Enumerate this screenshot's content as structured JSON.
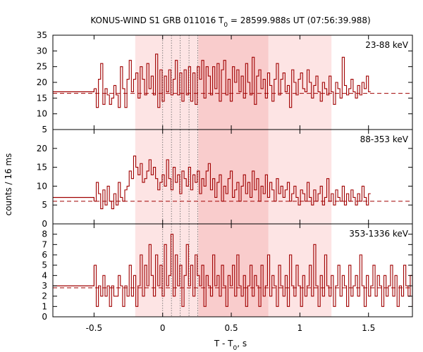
{
  "chart_data": {
    "type": "line",
    "title": {
      "prefix": "KONUS-WIND S1 GRB 011016 T",
      "sub": "0",
      "suffix": " = 28599.988s UT (07:56:39.988)"
    },
    "ylabel": "counts / 16 ms",
    "xlabel": {
      "prefix": "T - T",
      "sub": "0",
      "suffix": ", s"
    },
    "xlim": [
      -0.8,
      1.82
    ],
    "xticks": [
      -0.5,
      0,
      0.5,
      1,
      1.5
    ],
    "xtick_labels": [
      "-0.5",
      "0",
      "0.5",
      "1",
      "1.5"
    ],
    "bin_width_s": 0.016,
    "shaded_regions": [
      {
        "x": [
          -0.2,
          1.23
        ],
        "color": "#fde4e4"
      },
      {
        "x": [
          0.26,
          0.77
        ],
        "color": "#f9cccc"
      }
    ],
    "dotted_lines_x": [
      0.0,
      0.064,
      0.128,
      0.192,
      0.256
    ],
    "line_color": "#a00000",
    "panels": [
      {
        "label": "23-88 keV",
        "ylim": [
          5,
          35
        ],
        "yticks": [
          5,
          10,
          15,
          20,
          25,
          30,
          35
        ],
        "background_level": 16.5,
        "pre_trigger_level": 17,
        "counts": [
          18,
          12,
          21,
          26,
          13,
          18,
          16,
          13,
          15,
          19,
          16,
          12,
          25,
          18,
          12,
          21,
          27,
          17,
          21,
          23,
          15,
          25,
          21,
          16,
          26,
          18,
          22,
          16,
          29,
          12,
          24,
          14,
          22,
          17,
          24,
          16,
          21,
          27,
          16,
          23,
          14,
          24,
          16,
          25,
          14,
          23,
          13,
          25,
          21,
          27,
          15,
          25,
          22,
          16,
          25,
          18,
          26,
          14,
          24,
          27,
          16,
          21,
          14,
          25,
          20,
          24,
          17,
          22,
          15,
          26,
          20,
          16,
          28,
          13,
          22,
          24,
          18,
          21,
          15,
          23,
          19,
          14,
          21,
          26,
          16,
          21,
          23,
          17,
          19,
          12,
          24,
          20,
          16,
          21,
          23,
          18,
          17,
          24,
          20,
          15,
          19,
          22,
          17,
          14,
          20,
          18,
          16,
          22,
          17,
          13,
          20,
          18,
          15,
          28,
          19,
          16,
          18,
          21,
          17,
          15,
          19,
          16,
          20,
          18,
          22,
          17
        ]
      },
      {
        "label": "88-353 keV",
        "ylim": [
          0,
          25
        ],
        "yticks": [
          0,
          5,
          10,
          15,
          20
        ],
        "background_level": 6,
        "pre_trigger_level": 7,
        "counts": [
          6,
          11,
          8,
          4,
          9,
          5,
          10,
          6,
          4,
          8,
          5,
          11,
          7,
          6,
          9,
          10,
          14,
          12,
          18,
          15,
          13,
          16,
          11,
          12,
          14,
          17,
          13,
          15,
          12,
          9,
          11,
          13,
          10,
          17,
          12,
          9,
          15,
          11,
          13,
          8,
          14,
          12,
          10,
          15,
          9,
          13,
          11,
          14,
          8,
          12,
          10,
          14,
          16,
          9,
          12,
          7,
          11,
          13,
          6,
          10,
          8,
          12,
          14,
          7,
          9,
          11,
          6,
          10,
          13,
          8,
          11,
          7,
          14,
          9,
          12,
          6,
          10,
          8,
          13,
          7,
          11,
          9,
          6,
          12,
          8,
          10,
          7,
          9,
          11,
          6,
          8,
          10,
          7,
          5,
          9,
          8,
          6,
          11,
          7,
          5,
          9,
          6,
          8,
          10,
          5,
          7,
          12,
          6,
          8,
          5,
          9,
          7,
          6,
          10,
          5,
          8,
          6,
          9,
          7,
          5,
          8,
          6,
          10,
          7,
          5,
          8
        ]
      },
      {
        "label": "353-1336 keV",
        "ylim": [
          0,
          9
        ],
        "yticks": [
          0,
          1,
          2,
          3,
          4,
          5,
          6,
          7,
          8
        ],
        "background_level": 2.8,
        "pre_trigger_level": 3,
        "counts": [
          5,
          1,
          3,
          2,
          4,
          2,
          3,
          1,
          3,
          2,
          2,
          4,
          3,
          1,
          3,
          2,
          5,
          2,
          4,
          1,
          3,
          6,
          2,
          5,
          3,
          7,
          4,
          2,
          6,
          3,
          5,
          2,
          7,
          3,
          4,
          8,
          2,
          6,
          3,
          5,
          1,
          4,
          7,
          3,
          5,
          2,
          6,
          4,
          3,
          5,
          1,
          4,
          3,
          2,
          6,
          3,
          4,
          2,
          5,
          3,
          1,
          4,
          3,
          5,
          2,
          6,
          3,
          2,
          4,
          1,
          3,
          5,
          2,
          4,
          3,
          1,
          5,
          2,
          3,
          6,
          2,
          4,
          3,
          1,
          5,
          3,
          2,
          4,
          1,
          6,
          3,
          2,
          5,
          3,
          1,
          4,
          2,
          3,
          5,
          2,
          7,
          3,
          1,
          4,
          2,
          6,
          3,
          2,
          4,
          1,
          3,
          5,
          2,
          4,
          3,
          1,
          5,
          2,
          3,
          4,
          2,
          6,
          3,
          1,
          4,
          2,
          3,
          5,
          2,
          4,
          3,
          1,
          4,
          2,
          3,
          5,
          2,
          4,
          1,
          3,
          2,
          5,
          3,
          2,
          4,
          1,
          3,
          6,
          2,
          4,
          3,
          1,
          5,
          2,
          3,
          4,
          2,
          3,
          1,
          4
        ]
      }
    ]
  }
}
